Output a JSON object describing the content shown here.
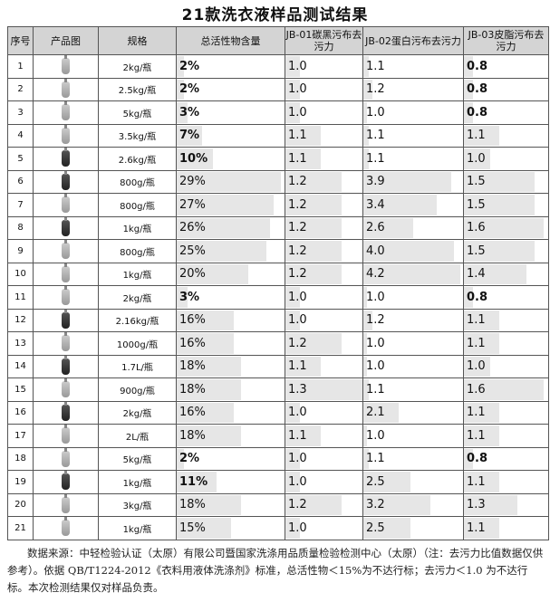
{
  "title": "21款洗衣液样品测试结果",
  "headers": [
    "序号",
    "产品图",
    "规格",
    "总活性物含量",
    "JB-01碳黑污布去污力",
    "JB-02蛋白污布去污力",
    "JB-03皮脂污布去污力"
  ],
  "rows": [
    {
      "no": "1",
      "spec": "2kg/瓶",
      "active": "2%",
      "jb01": "1.0",
      "jb02": "1.1",
      "jb03": "0.8"
    },
    {
      "no": "2",
      "spec": "2.5kg/瓶",
      "active": "2%",
      "jb01": "1.0",
      "jb02": "1.2",
      "jb03": "0.8"
    },
    {
      "no": "3",
      "spec": "5kg/瓶",
      "active": "3%",
      "jb01": "1.0",
      "jb02": "1.0",
      "jb03": "0.8"
    },
    {
      "no": "4",
      "spec": "3.5kg/瓶",
      "active": "7%",
      "jb01": "1.1",
      "jb02": "1.1",
      "jb03": "1.1"
    },
    {
      "no": "5",
      "spec": "2.6kg/瓶",
      "active": "10%",
      "jb01": "1.1",
      "jb02": "1.1",
      "jb03": "1.0"
    },
    {
      "no": "6",
      "spec": "800g/瓶",
      "active": "29%",
      "jb01": "1.2",
      "jb02": "3.9",
      "jb03": "1.5"
    },
    {
      "no": "7",
      "spec": "800g/瓶",
      "active": "27%",
      "jb01": "1.2",
      "jb02": "3.4",
      "jb03": "1.5"
    },
    {
      "no": "8",
      "spec": "1kg/瓶",
      "active": "26%",
      "jb01": "1.2",
      "jb02": "2.6",
      "jb03": "1.6"
    },
    {
      "no": "9",
      "spec": "800g/瓶",
      "active": "25%",
      "jb01": "1.2",
      "jb02": "4.0",
      "jb03": "1.5"
    },
    {
      "no": "10",
      "spec": "1kg/瓶",
      "active": "20%",
      "jb01": "1.2",
      "jb02": "4.2",
      "jb03": "1.4"
    },
    {
      "no": "11",
      "spec": "2kg/瓶",
      "active": "3%",
      "jb01": "1.0",
      "jb02": "1.0",
      "jb03": "0.8"
    },
    {
      "no": "12",
      "spec": "2.16kg/瓶",
      "active": "16%",
      "jb01": "1.0",
      "jb02": "1.2",
      "jb03": "1.1"
    },
    {
      "no": "13",
      "spec": "1000g/瓶",
      "active": "16%",
      "jb01": "1.2",
      "jb02": "1.0",
      "jb03": "1.1"
    },
    {
      "no": "14",
      "spec": "1.7L/瓶",
      "active": "18%",
      "jb01": "1.1",
      "jb02": "1.0",
      "jb03": "1.0"
    },
    {
      "no": "15",
      "spec": "900g/瓶",
      "active": "18%",
      "jb01": "1.3",
      "jb02": "1.1",
      "jb03": "1.6"
    },
    {
      "no": "16",
      "spec": "2kg/瓶",
      "active": "16%",
      "jb01": "1.0",
      "jb02": "2.1",
      "jb03": "1.1"
    },
    {
      "no": "17",
      "spec": "2L/瓶",
      "active": "18%",
      "jb01": "1.1",
      "jb02": "1.0",
      "jb03": "1.1"
    },
    {
      "no": "18",
      "spec": "5kg/瓶",
      "active": "2%",
      "jb01": "1.0",
      "jb02": "1.1",
      "jb03": "0.8"
    },
    {
      "no": "19",
      "spec": "1kg/瓶",
      "active": "11%",
      "jb01": "1.0",
      "jb02": "2.5",
      "jb03": "1.1"
    },
    {
      "no": "20",
      "spec": "3kg/瓶",
      "active": "18%",
      "jb01": "1.2",
      "jb02": "3.2",
      "jb03": "1.3"
    },
    {
      "no": "21",
      "spec": "1kg/瓶",
      "active": "15%",
      "jb01": "1.0",
      "jb02": "2.5",
      "jb03": "1.1"
    }
  ],
  "dark_bottles": [
    "5",
    "6",
    "8",
    "12",
    "14",
    "16",
    "19"
  ],
  "note": "数据来源：中轻检验认证（太原）有限公司暨国家洗涤用品质量检验检测中心（太原）（注：去污力比值数据仅供参考）。依据 QB/T1224-2012《衣料用液体洗涤剂》标准，总活性物＜15%为不达行标；去污力＜1.0 为不达行标。本次检测结果仅对样品负责。"
}
